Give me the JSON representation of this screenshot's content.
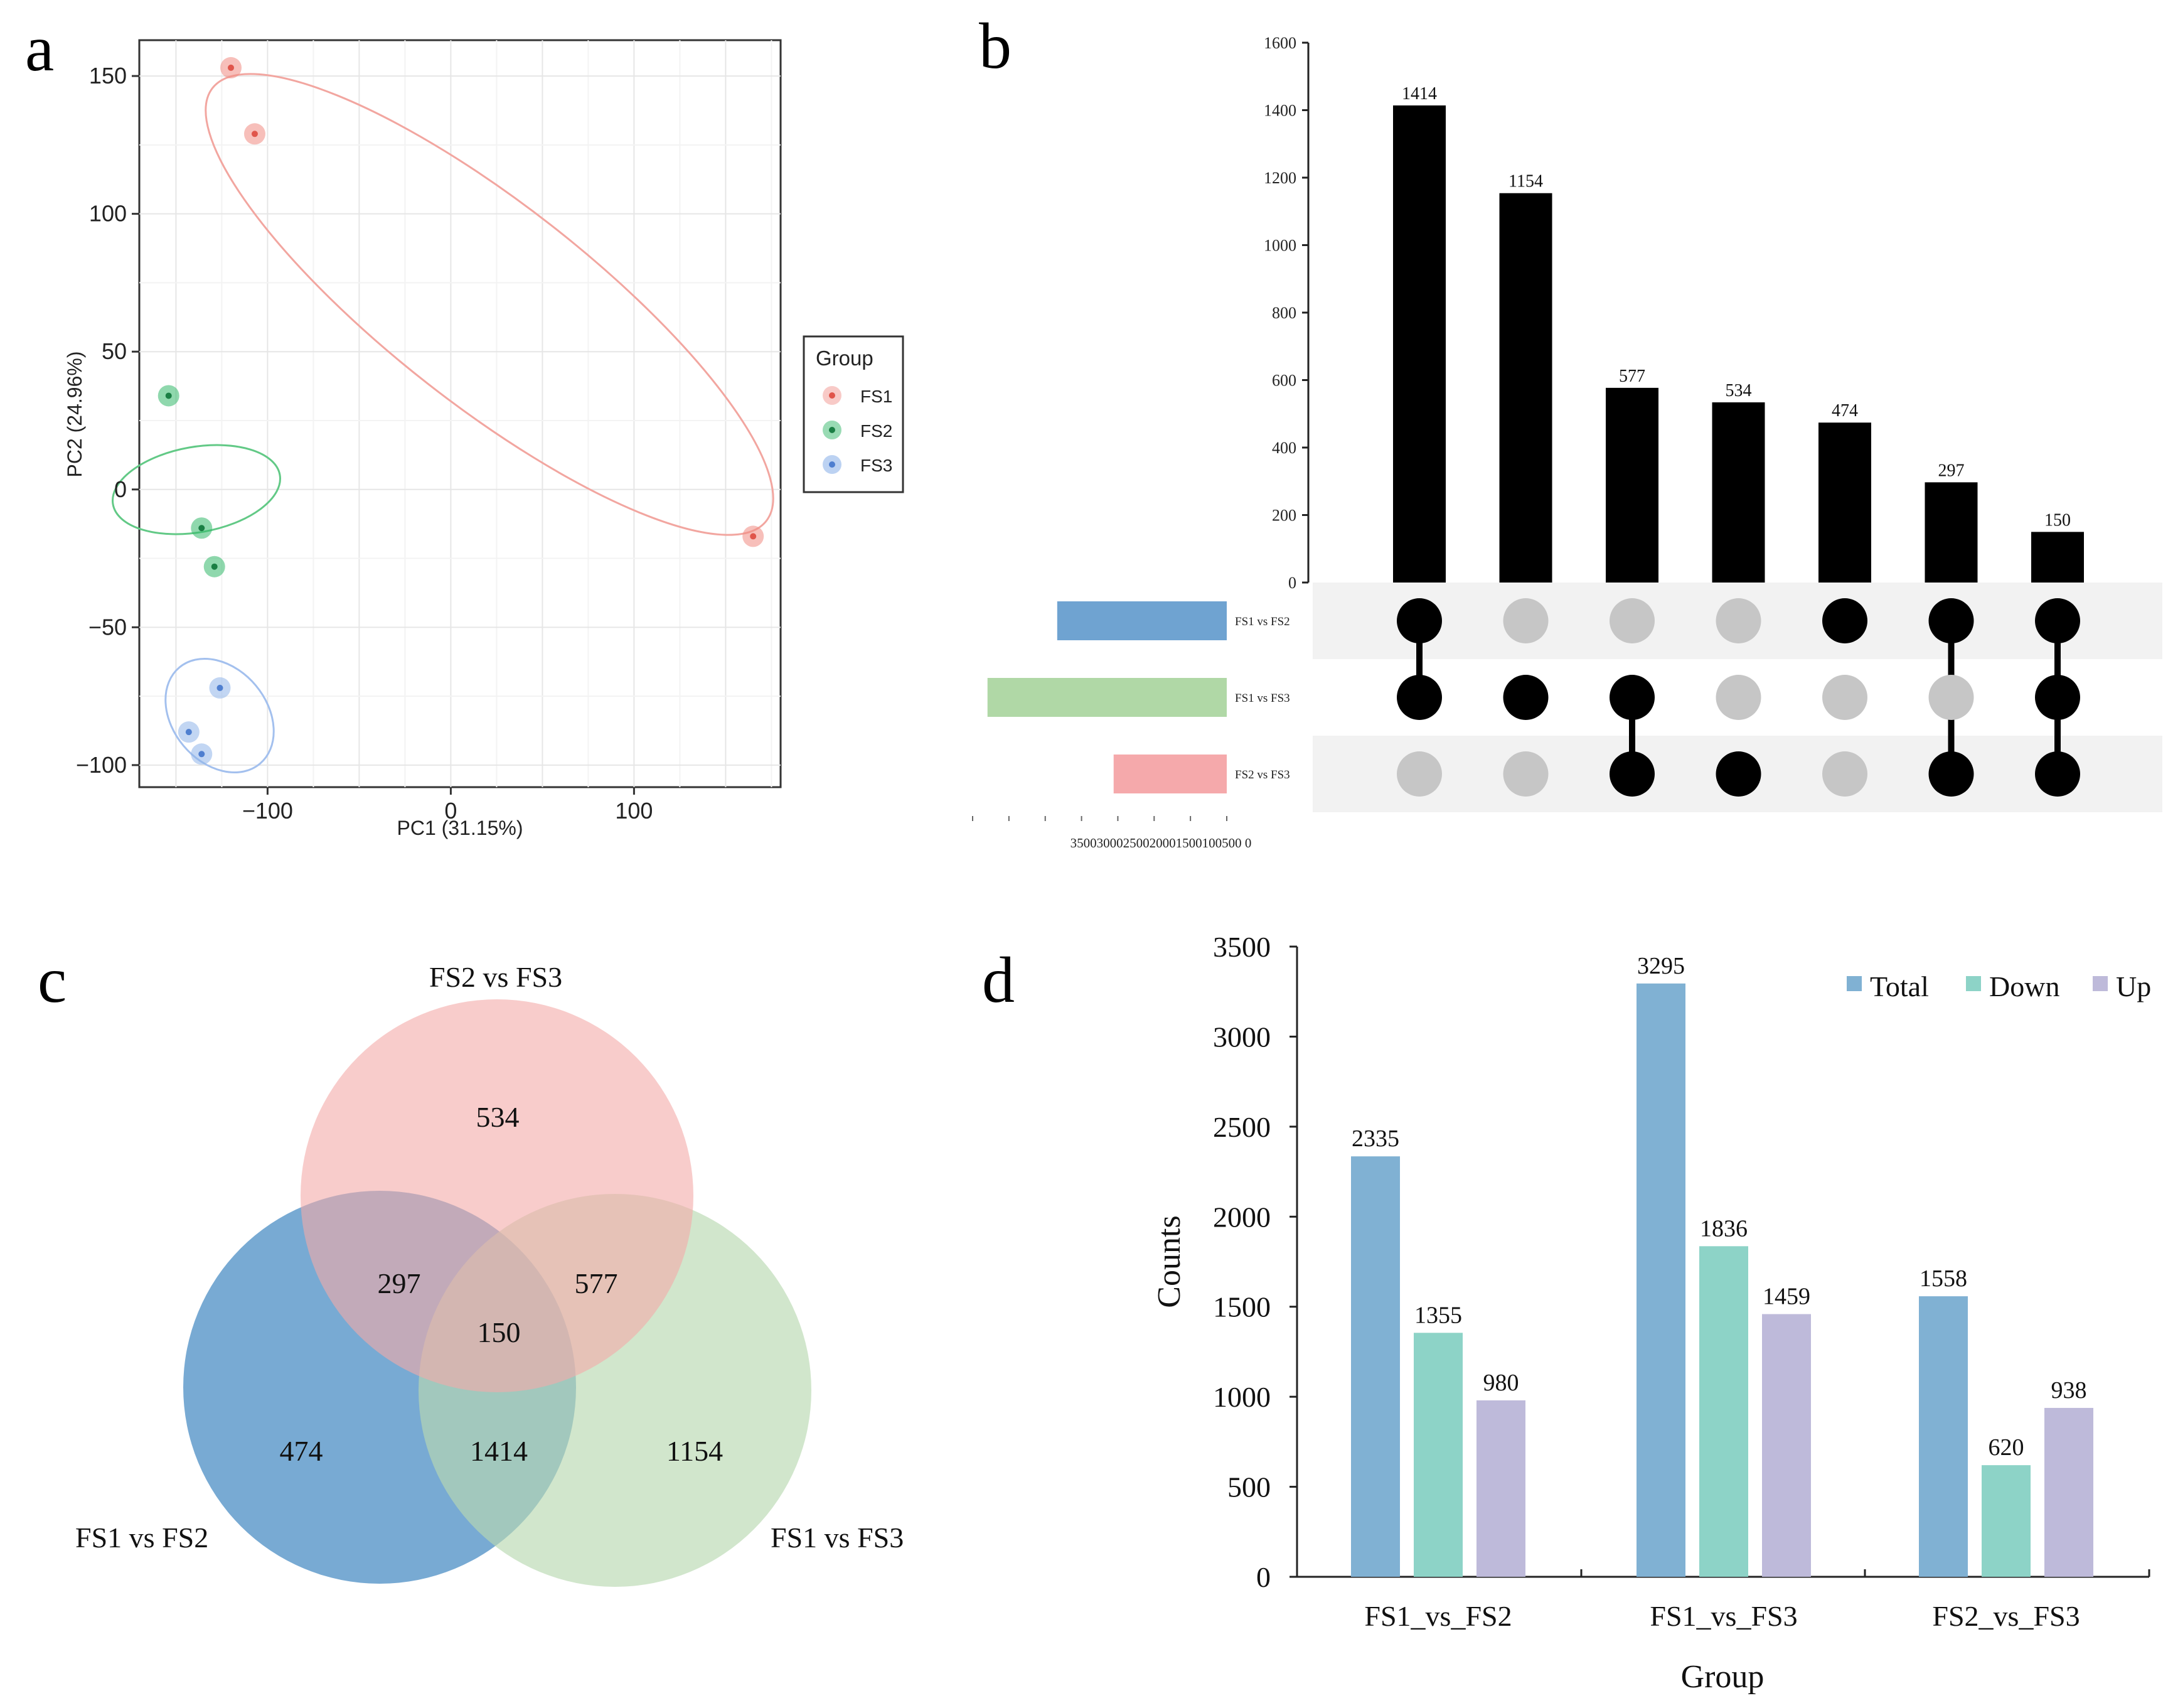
{
  "panel_labels": {
    "a": "a",
    "b": "b",
    "c": "c",
    "d": "d"
  },
  "colors": {
    "FS1": "#f08a82",
    "FS2": "#33b86a",
    "FS3": "#8fb4ea",
    "venn_fs1_fs2": "#3f86c0",
    "venn_fs1_fs3": "#b9d8b0",
    "venn_fs2_fs3": "#f4aaa8",
    "up_fs1_fs2": "#6fa3d1",
    "up_fs1_fs3": "#b0d8a6",
    "up_fs2_fs3": "#f5a9ab",
    "total": "#80b1d3",
    "down": "#8dd3c7",
    "up": "#bebada",
    "dot_on": "#000000",
    "dot_off": "#c6c6c6"
  },
  "chart_data": [
    {
      "id": "a",
      "type": "scatter",
      "xlabel": "PC1 (31.15%)",
      "ylabel": "PC2 (24.96%)",
      "xlim": [
        -170,
        180
      ],
      "ylim": [
        -108,
        163
      ],
      "xticks": [
        -100,
        0,
        100
      ],
      "xtick_labels": [
        "−100",
        "0",
        "100"
      ],
      "yticks": [
        -100,
        -50,
        0,
        50,
        100,
        150
      ],
      "ytick_labels": [
        "−100",
        "−50",
        "0",
        "50",
        "100",
        "150"
      ],
      "legend": {
        "title": "Group",
        "position": "right",
        "entries": [
          "FS1",
          "FS2",
          "FS3"
        ]
      },
      "series": [
        {
          "name": "FS1",
          "points": [
            [
              -120,
              153
            ],
            [
              -107,
              129
            ],
            [
              165,
              -17
            ]
          ]
        },
        {
          "name": "FS2",
          "points": [
            [
              -154,
              34
            ],
            [
              -136,
              -14
            ],
            [
              -129,
              -28
            ]
          ]
        },
        {
          "name": "FS3",
          "points": [
            [
              -126,
              -72
            ],
            [
              -143,
              -88
            ],
            [
              -136,
              -96
            ]
          ]
        }
      ]
    },
    {
      "id": "b",
      "type": "bar",
      "subtype": "upset",
      "ylim": [
        0,
        1600
      ],
      "yticks": [
        0,
        200,
        400,
        600,
        800,
        1000,
        1200,
        1400,
        1600
      ],
      "intersections": [
        {
          "value": 1414,
          "sets": [
            "FS1 vs FS2",
            "FS1 vs FS3"
          ]
        },
        {
          "value": 1154,
          "sets": [
            "FS1 vs FS3"
          ]
        },
        {
          "value": 577,
          "sets": [
            "FS1 vs FS3",
            "FS2 vs FS3"
          ]
        },
        {
          "value": 534,
          "sets": [
            "FS2 vs FS3"
          ]
        },
        {
          "value": 474,
          "sets": [
            "FS1 vs FS2"
          ]
        },
        {
          "value": 297,
          "sets": [
            "FS1 vs FS2",
            "FS2 vs FS3"
          ]
        },
        {
          "value": 150,
          "sets": [
            "FS1 vs FS2",
            "FS1 vs FS3",
            "FS2 vs FS3"
          ]
        }
      ],
      "set_names": [
        "FS1 vs FS2",
        "FS1 vs FS3",
        "FS2 vs FS3"
      ],
      "set_sizes": [
        2335,
        3295,
        1558
      ],
      "set_axis_ticks": [
        3500,
        3000,
        2500,
        2000,
        1500,
        1000,
        500,
        0
      ],
      "set_axis_label": "35003000250020001500100500 0"
    },
    {
      "id": "c",
      "type": "venn",
      "sets": [
        "FS1 vs FS2",
        "FS1 vs FS3",
        "FS2 vs FS3"
      ],
      "regions": {
        "fs2_fs3_only": 534,
        "fs1_fs2_and_fs2_fs3": 297,
        "fs1_fs3_and_fs2_fs3": 577,
        "all_three": 150,
        "fs1_fs2_only": 474,
        "fs1_fs2_and_fs1_fs3": 1414,
        "fs1_fs3_only": 1154
      }
    },
    {
      "id": "d",
      "type": "bar",
      "xlabel": "Group",
      "ylabel": "Counts",
      "ylim": [
        0,
        3500
      ],
      "yticks": [
        0,
        500,
        1000,
        1500,
        2000,
        2500,
        3000,
        3500
      ],
      "categories": [
        "FS1_vs_FS2",
        "FS1_vs_FS3",
        "FS2_vs_FS3"
      ],
      "legend_position": "top-right",
      "series": [
        {
          "name": "Total",
          "values": [
            2335,
            3295,
            1558
          ]
        },
        {
          "name": "Down",
          "values": [
            1355,
            1836,
            620
          ]
        },
        {
          "name": "Up",
          "values": [
            980,
            1459,
            938
          ]
        }
      ]
    }
  ]
}
